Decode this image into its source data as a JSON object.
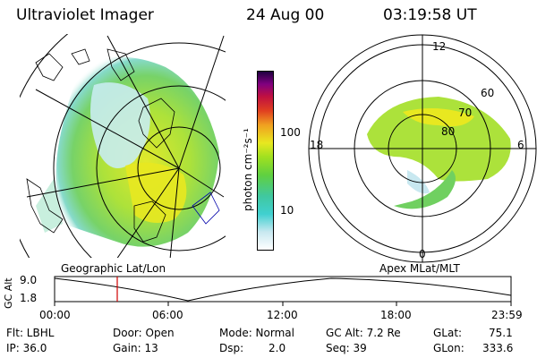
{
  "header": {
    "instrument": "Ultraviolet Imager",
    "date": "24 Aug 00",
    "time": "03:19:58 UT"
  },
  "left_map": {
    "caption": "Geographic Lat/Lon"
  },
  "right_map": {
    "caption": "Apex MLat/MLT",
    "mlt_labels": {
      "top": "12",
      "left": "18",
      "right": "6",
      "bottom": "0"
    },
    "lat_labels": [
      "60",
      "70",
      "80"
    ]
  },
  "colorbar": {
    "unit_label": "photon cm⁻²s⁻¹",
    "ticks": [
      "100",
      "10"
    ],
    "colors": [
      "#ffffff",
      "#c8e8f0",
      "#40d0d0",
      "#40c8a0",
      "#60d040",
      "#a0e020",
      "#e8e820",
      "#f0a020",
      "#e04020",
      "#c01040",
      "#800080",
      "#200040"
    ]
  },
  "altitude_plot": {
    "ylabel": "GC Alt",
    "ytick_top": "9.0",
    "ytick_bottom": "1.8",
    "xticks": [
      "00:00",
      "06:00",
      "12:00",
      "18:00",
      "23:59"
    ],
    "marker_color": "#d00000"
  },
  "status": {
    "flt": "Flt: LBHL",
    "ip": "IP: 36.0",
    "door": "Door: Open",
    "gain": "Gain: 13",
    "mode": "Mode: Normal",
    "dsp": "Dsp:",
    "dsp_value": "2.0",
    "gc_alt": "GC Alt: 7.2 Re",
    "seq": "Seq: 39",
    "glat": "GLat:",
    "glat_value": "75.1",
    "glon": "GLon:",
    "glon_value": "333.6"
  }
}
